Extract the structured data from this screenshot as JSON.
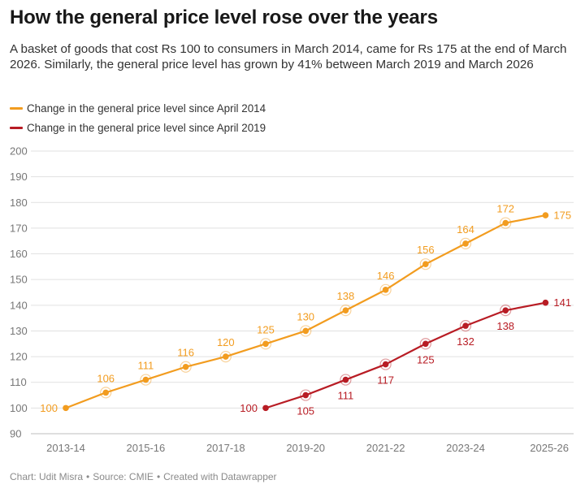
{
  "title": "How the general price level rose over the years",
  "subtitle": "A basket of goods that cost Rs 100 to consumers in March 2014, came for Rs 175 at the end of March 2026. Similarly, the general price level has grown by 41% between March 2019 and March 2026",
  "footer": {
    "chart_by": "Chart: Udit Misra",
    "source": "Source: CMIE",
    "created_with": "Created with Datawrapper",
    "separator": "•"
  },
  "colors": {
    "series_2014": "#f29c1f",
    "series_2019": "#b81c24",
    "gridline": "#e1e1e1",
    "tick_text": "#777777"
  },
  "chart_data": {
    "type": "line",
    "title": "How the general price level rose over the years",
    "xlabel": "",
    "ylabel": "",
    "ylim": [
      90,
      200
    ],
    "yticks": [
      90,
      100,
      110,
      120,
      130,
      140,
      150,
      160,
      170,
      180,
      190,
      200
    ],
    "x": [
      "2013-14",
      "2014-15",
      "2015-16",
      "2016-17",
      "2017-18",
      "2018-19",
      "2019-20",
      "2020-21",
      "2021-22",
      "2022-23",
      "2023-24",
      "2024-25",
      "2025-26"
    ],
    "xtick_labels": [
      "2013-14",
      "2015-16",
      "2017-18",
      "2019-20",
      "2021-22",
      "2023-24",
      "2025-26"
    ],
    "grid": true,
    "legend_position": "top-left",
    "series": [
      {
        "name": "Change in the general price level since April 2014",
        "color": "#f29c1f",
        "values": [
          100,
          106,
          111,
          116,
          120,
          125,
          130,
          138,
          146,
          156,
          164,
          172,
          175
        ],
        "label_position": "above"
      },
      {
        "name": "Change in the general price level since April 2019",
        "color": "#b81c24",
        "values": [
          null,
          null,
          null,
          null,
          null,
          100,
          105,
          111,
          117,
          125,
          132,
          138,
          141
        ],
        "label_position": "below"
      }
    ]
  }
}
